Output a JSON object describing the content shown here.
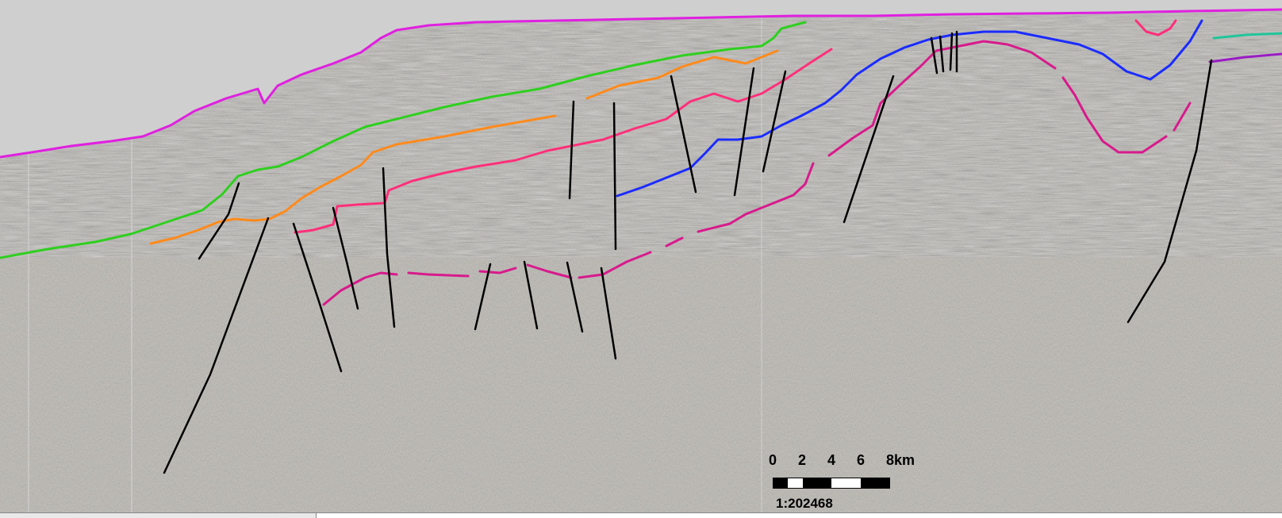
{
  "colors": {
    "background": "#cfcfcf",
    "seabed": "#e020e0",
    "horizon_green": "#2fcf1f",
    "horizon_orange": "#ff8a1c",
    "horizon_pink": "#ff2f7a",
    "horizon_magenta": "#d81a8c",
    "horizon_blue": "#1b2cff",
    "horizon_teal": "#1fc59a",
    "horizon_purple": "#9a1cc4",
    "fault": "#000000",
    "seismic_base": "#b9b6b0"
  },
  "scalebar": {
    "ticks": [
      "0",
      "2",
      "4",
      "6",
      "8km"
    ],
    "ratio": "1:202468"
  }
}
